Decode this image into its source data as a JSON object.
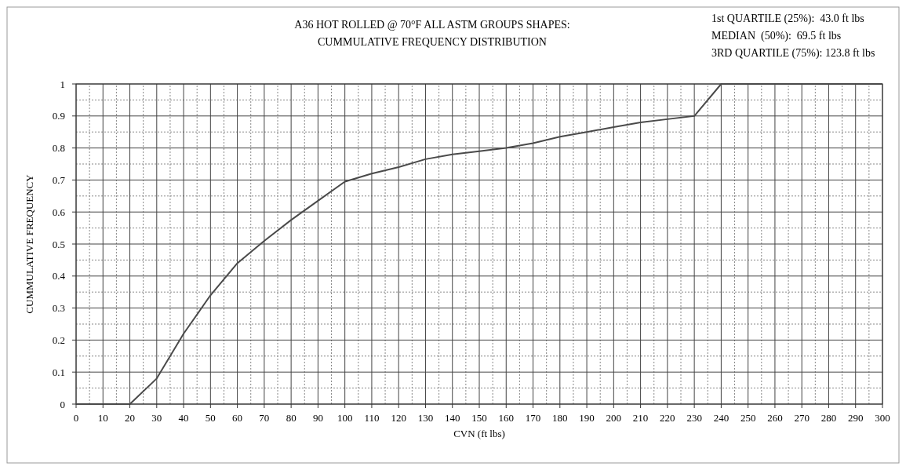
{
  "chart_data": {
    "type": "line",
    "title": "A36 HOT ROLLED @ 70°F ALL ASTM GROUPS SHAPES:",
    "subtitle": "CUMMULATIVE FREQUENCY DISTRIBUTION",
    "xlabel": "CVN (ft lbs)",
    "ylabel": "CUMMULATIVE FREQUENCY",
    "annotations": [
      "1st QUARTILE (25%):  43.0 ft lbs",
      "MEDIAN  (50%):  69.5 ft lbs",
      "3RD QUARTILE (75%): 123.8 ft lbs"
    ],
    "x": [
      0,
      10,
      20,
      30,
      40,
      50,
      60,
      70,
      80,
      90,
      100,
      110,
      120,
      130,
      140,
      150,
      160,
      170,
      180,
      190,
      200,
      210,
      220,
      230,
      240,
      250,
      260,
      270,
      280,
      290,
      300
    ],
    "series": [
      {
        "color": "#4a4a4a",
        "values": [
          0,
          0,
          0,
          0.08,
          0.22,
          0.34,
          0.44,
          0.51,
          0.575,
          0.635,
          0.695,
          0.72,
          0.74,
          0.765,
          0.78,
          0.79,
          0.8,
          0.815,
          0.835,
          0.85,
          0.865,
          0.88,
          0.89,
          0.9,
          1,
          1,
          1,
          1,
          1,
          1,
          1
        ]
      }
    ],
    "xlim": [
      0,
      300
    ],
    "xticks": [
      0,
      10,
      20,
      30,
      40,
      50,
      60,
      70,
      80,
      90,
      100,
      110,
      120,
      130,
      140,
      150,
      160,
      170,
      180,
      190,
      200,
      210,
      220,
      230,
      240,
      250,
      260,
      270,
      280,
      290,
      300
    ],
    "ylim": [
      0,
      1
    ],
    "yticks": [
      0,
      0.1,
      0.2,
      0.3,
      0.4,
      0.5,
      0.6,
      0.7,
      0.8,
      0.9,
      1
    ],
    "grid": true,
    "marker": "none",
    "line_style": "solid"
  }
}
